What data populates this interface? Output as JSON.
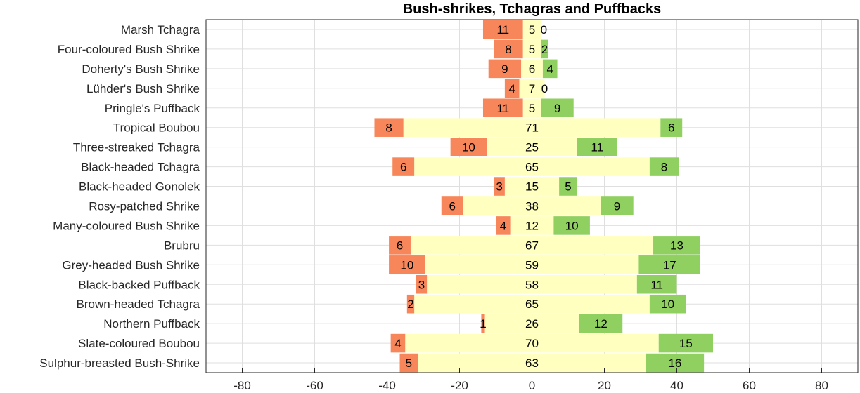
{
  "chart_data": {
    "type": "bar",
    "orientation": "horizontal",
    "stacked": "diverging",
    "title": "Bush-shrikes, Tchagras and Puffbacks",
    "xlabel": "",
    "ylabel": "",
    "xlim": [
      -90,
      90
    ],
    "xticks": [
      -80,
      -60,
      -40,
      -20,
      0,
      20,
      40,
      60,
      80
    ],
    "grid": true,
    "categories": [
      "Marsh Tchagra",
      "Four-coloured Bush Shrike",
      "Doherty's Bush Shrike",
      "Lühder's Bush Shrike",
      "Pringle's Puffback",
      "Tropical Boubou",
      "Three-streaked Tchagra",
      "Black-headed Tchagra",
      "Black-headed Gonolek",
      "Rosy-patched Shrike",
      "Many-coloured Bush Shrike",
      "Brubru",
      "Grey-headed Bush Shrike",
      "Black-backed Puffback",
      "Brown-headed Tchagra",
      "Northern Puffback",
      "Slate-coloured Boubou",
      "Sulphur-breasted Bush-Shrike"
    ],
    "series": [
      {
        "color": "#f7875a",
        "values": [
          11,
          8,
          9,
          4,
          11,
          8,
          10,
          6,
          3,
          6,
          4,
          6,
          10,
          3,
          2,
          1,
          4,
          5
        ]
      },
      {
        "color": "#ffffc0",
        "values": [
          5,
          5,
          6,
          7,
          5,
          71,
          25,
          65,
          15,
          38,
          12,
          67,
          59,
          58,
          65,
          26,
          70,
          63
        ]
      },
      {
        "color": "#90d060",
        "values": [
          0,
          2,
          4,
          0,
          9,
          6,
          11,
          8,
          5,
          9,
          10,
          13,
          17,
          11,
          10,
          12,
          15,
          16
        ]
      }
    ]
  }
}
